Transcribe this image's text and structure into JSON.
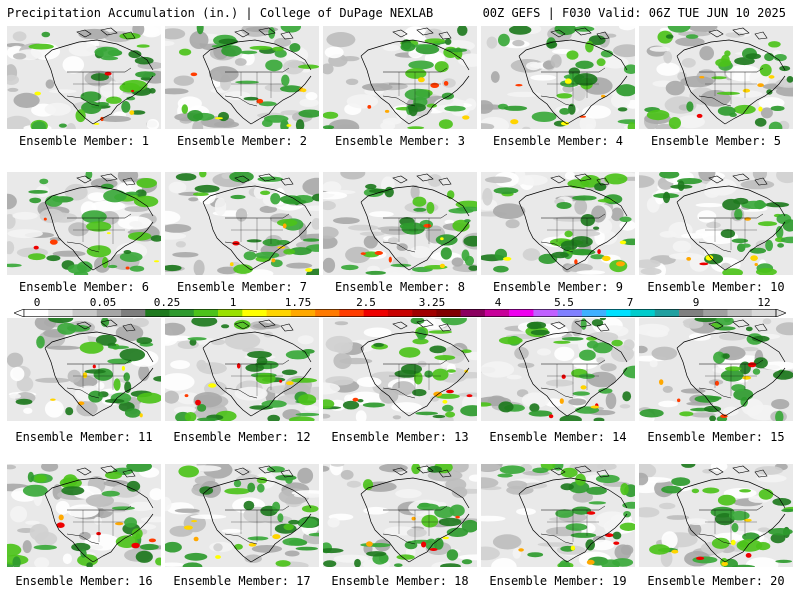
{
  "header": {
    "left": "Precipitation Accumulation (in.) | College of DuPage NEXLAB",
    "right": "00Z GEFS | F030 Valid: 06Z TUE JUN 10 2025"
  },
  "colorbar": {
    "tick_labels": [
      "0",
      "0.05",
      "0.25",
      "1",
      "1.75",
      "2.5",
      "3.25",
      "4",
      "5.5",
      "7",
      "9",
      "12"
    ],
    "colors": [
      "#ffffff",
      "#e6e6e6",
      "#c8c8c8",
      "#a6a6a6",
      "#7e7e7e",
      "#1e7a1e",
      "#2e9a2e",
      "#4cc21a",
      "#9ae000",
      "#ffff00",
      "#ffd400",
      "#ffa800",
      "#ff7a00",
      "#ff3c00",
      "#ee0000",
      "#c80000",
      "#a00000",
      "#800000",
      "#8b0060",
      "#c8009a",
      "#ee00ee",
      "#c060ff",
      "#8080ff",
      "#40b0ff",
      "#00e0ff",
      "#00cccc",
      "#20a0a0",
      "#808080",
      "#a0a0a0",
      "#c0c0c0",
      "#d8d8d8"
    ]
  },
  "panels": [
    {
      "label": "Ensemble Member: 1"
    },
    {
      "label": "Ensemble Member: 2"
    },
    {
      "label": "Ensemble Member: 3"
    },
    {
      "label": "Ensemble Member: 4"
    },
    {
      "label": "Ensemble Member: 5"
    },
    {
      "label": "Ensemble Member: 6"
    },
    {
      "label": "Ensemble Member: 7"
    },
    {
      "label": "Ensemble Member: 8"
    },
    {
      "label": "Ensemble Member: 9"
    },
    {
      "label": "Ensemble Member: 10"
    },
    {
      "label": "Ensemble Member: 11"
    },
    {
      "label": "Ensemble Member: 12"
    },
    {
      "label": "Ensemble Member: 13"
    },
    {
      "label": "Ensemble Member: 14"
    },
    {
      "label": "Ensemble Member: 15"
    },
    {
      "label": "Ensemble Member: 16"
    },
    {
      "label": "Ensemble Member: 17"
    },
    {
      "label": "Ensemble Member: 18"
    },
    {
      "label": "Ensemble Member: 19"
    },
    {
      "label": "Ensemble Member: 20"
    }
  ]
}
